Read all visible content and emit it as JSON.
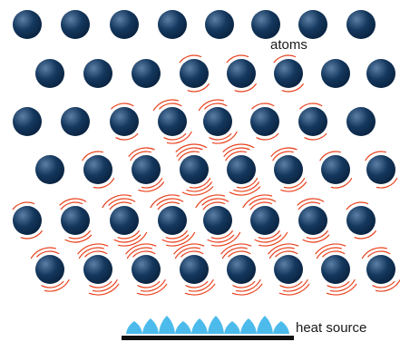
{
  "labels": {
    "atoms": "atoms",
    "heat_source": "heat source"
  },
  "colors": {
    "atom": "#14385e",
    "atom_highlight": "#5b7fa6",
    "vibration": "#e8401c",
    "flame": "#38b4ea",
    "burner": "#111111"
  }
}
